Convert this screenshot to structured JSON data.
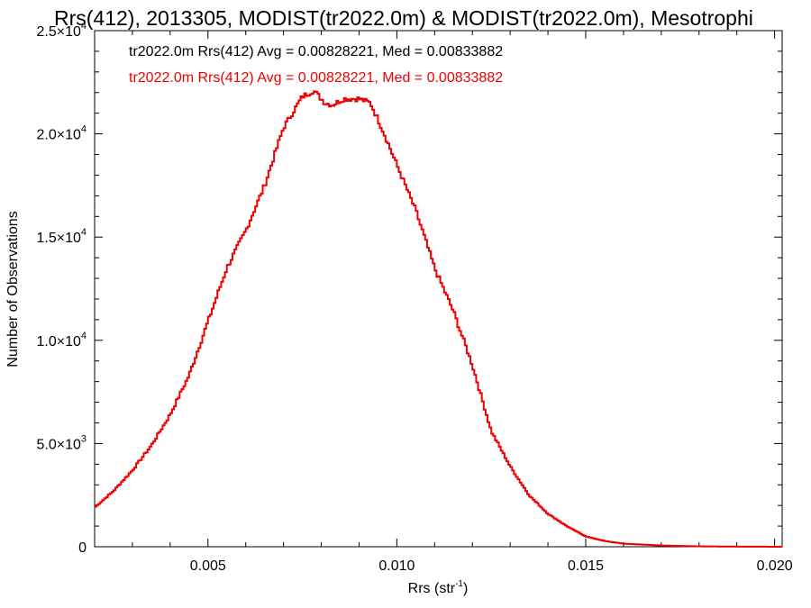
{
  "chart_data": {
    "type": "histogram",
    "title": "Rrs(412), 2013305, MODIST(tr2022.0m) & MODIST(tr2022.0m), Mesotrophi",
    "xlabel": "Rrs (str",
    "xlabel_sup": "-1",
    "xlabel_suffix": ")",
    "ylabel": "Number of Observations",
    "xlim": [
      0.002,
      0.0202
    ],
    "ylim": [
      0,
      25000
    ],
    "xticks": [
      {
        "value": 0.005,
        "label": "0.005"
      },
      {
        "value": 0.01,
        "label": "0.010"
      },
      {
        "value": 0.015,
        "label": "0.015"
      },
      {
        "value": 0.02,
        "label": "0.020"
      }
    ],
    "yticks": [
      {
        "value": 0,
        "mant": "0",
        "exp": ""
      },
      {
        "value": 5000,
        "mant": "5.0×10",
        "exp": "3"
      },
      {
        "value": 10000,
        "mant": "1.0×10",
        "exp": "4"
      },
      {
        "value": 15000,
        "mant": "1.5×10",
        "exp": "4"
      },
      {
        "value": 20000,
        "mant": "2.0×10",
        "exp": "4"
      },
      {
        "value": 25000,
        "mant": "2.5×10",
        "exp": "4"
      }
    ],
    "legend": [
      {
        "text": "tr2022.0m Rrs(412) Avg = 0.00828221, Med = 0.00833882",
        "color": "#000000"
      },
      {
        "text": "tr2022.0m Rrs(412) Avg = 0.00828221, Med = 0.00833882",
        "color": "#ee0000"
      }
    ],
    "series": [
      {
        "color": "#ee0000",
        "points": [
          [
            0.002,
            1900
          ],
          [
            0.0025,
            2700
          ],
          [
            0.003,
            3700
          ],
          [
            0.0035,
            4900
          ],
          [
            0.004,
            6400
          ],
          [
            0.0045,
            8300
          ],
          [
            0.005,
            10900
          ],
          [
            0.0055,
            13500
          ],
          [
            0.006,
            15300
          ],
          [
            0.0065,
            17500
          ],
          [
            0.007,
            20300
          ],
          [
            0.0075,
            21800
          ],
          [
            0.0078,
            22100
          ],
          [
            0.0081,
            21500
          ],
          [
            0.0083,
            21400
          ],
          [
            0.0086,
            21700
          ],
          [
            0.009,
            21700
          ],
          [
            0.0093,
            21500
          ],
          [
            0.0096,
            20300
          ],
          [
            0.01,
            18500
          ],
          [
            0.0105,
            16300
          ],
          [
            0.011,
            13500
          ],
          [
            0.0115,
            11400
          ],
          [
            0.012,
            8800
          ],
          [
            0.0125,
            5600
          ],
          [
            0.013,
            3900
          ],
          [
            0.0135,
            2500
          ],
          [
            0.014,
            1600
          ],
          [
            0.0145,
            1000
          ],
          [
            0.015,
            500
          ],
          [
            0.0155,
            280
          ],
          [
            0.016,
            150
          ],
          [
            0.017,
            60
          ],
          [
            0.018,
            20
          ],
          [
            0.019,
            8
          ],
          [
            0.0202,
            0
          ]
        ]
      }
    ]
  }
}
